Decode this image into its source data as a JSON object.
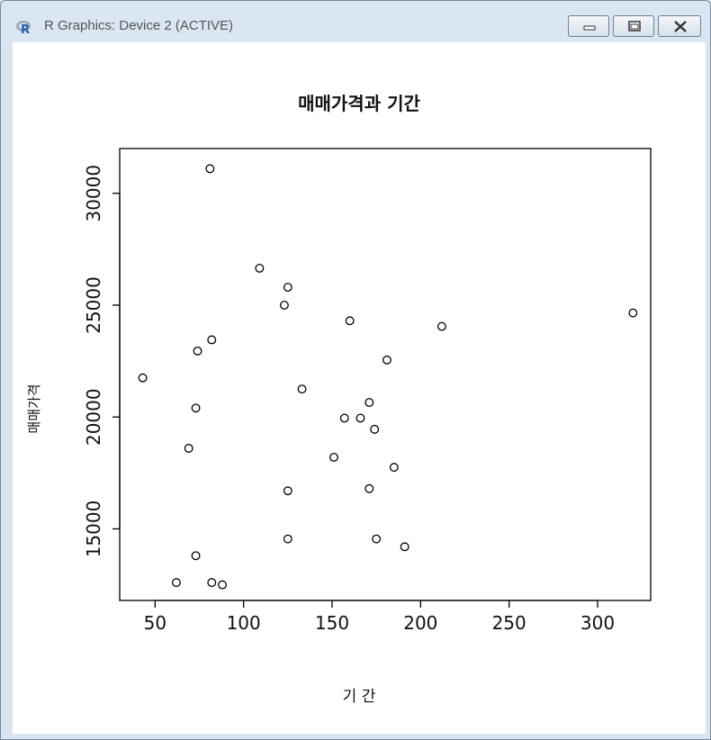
{
  "window": {
    "title": "R Graphics: Device 2 (ACTIVE)",
    "icon": "r-logo-icon",
    "buttons": [
      "minimize-icon",
      "maximize-icon",
      "close-icon"
    ]
  },
  "chart_data": {
    "type": "scatter",
    "title": "매매가격과 기간",
    "xlabel": "기 간",
    "ylabel": "매매가격",
    "xlim": [
      30,
      330
    ],
    "ylim": [
      11800,
      32000
    ],
    "xticks": [
      50,
      100,
      150,
      200,
      250,
      300
    ],
    "yticks": [
      15000,
      20000,
      25000,
      30000
    ],
    "grid": false,
    "legend": "none",
    "points": [
      {
        "x": 43,
        "y": 21750
      },
      {
        "x": 62,
        "y": 12600
      },
      {
        "x": 69,
        "y": 18600
      },
      {
        "x": 73,
        "y": 20400
      },
      {
        "x": 73,
        "y": 13800
      },
      {
        "x": 74,
        "y": 22950
      },
      {
        "x": 81,
        "y": 31100
      },
      {
        "x": 82,
        "y": 23450
      },
      {
        "x": 82,
        "y": 12600
      },
      {
        "x": 88,
        "y": 12500
      },
      {
        "x": 109,
        "y": 26650
      },
      {
        "x": 123,
        "y": 25000
      },
      {
        "x": 125,
        "y": 25800
      },
      {
        "x": 125,
        "y": 16700
      },
      {
        "x": 125,
        "y": 14550
      },
      {
        "x": 133,
        "y": 21250
      },
      {
        "x": 151,
        "y": 18200
      },
      {
        "x": 157,
        "y": 19950
      },
      {
        "x": 160,
        "y": 24300
      },
      {
        "x": 166,
        "y": 19950
      },
      {
        "x": 171,
        "y": 20650
      },
      {
        "x": 171,
        "y": 16800
      },
      {
        "x": 174,
        "y": 19450
      },
      {
        "x": 175,
        "y": 14550
      },
      {
        "x": 181,
        "y": 22550
      },
      {
        "x": 185,
        "y": 17750
      },
      {
        "x": 191,
        "y": 14200
      },
      {
        "x": 212,
        "y": 24050
      },
      {
        "x": 320,
        "y": 24650
      }
    ]
  }
}
